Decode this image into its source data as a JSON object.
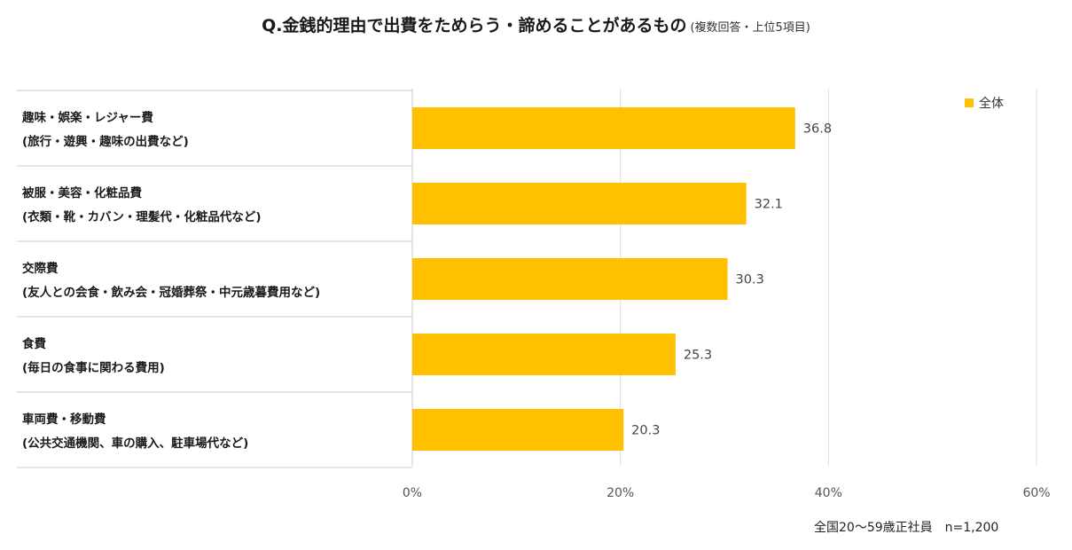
{
  "chart_data": {
    "type": "bar",
    "orientation": "horizontal",
    "title": "Q.金銭的理由で出費をためらう・諦めることがあるもの",
    "subtitle": "(複数回答・上位5項目)",
    "categories": [
      {
        "line1": "趣味・娯楽・レジャー費",
        "line2": "(旅行・遊興・趣味の出費など)"
      },
      {
        "line1": "被服・美容・化粧品費",
        "line2": "(衣類・靴・カバン・理髪代・化粧品代など)"
      },
      {
        "line1": "交際費",
        "line2": "(友人との会食・飲み会・冠婚葬祭・中元歳暮費用など)"
      },
      {
        "line1": "食費",
        "line2": "(毎日の食事に関わる費用)"
      },
      {
        "line1": "車両費・移動費",
        "line2": "(公共交通機関、車の購入、駐車場代など)"
      }
    ],
    "series": [
      {
        "name": "全体",
        "values": [
          36.8,
          32.1,
          30.3,
          25.3,
          20.3
        ]
      }
    ],
    "xlim": [
      0,
      60
    ],
    "xticks": [
      0,
      20,
      40,
      60
    ],
    "xtick_labels": [
      "0%",
      "20%",
      "40%",
      "60%"
    ],
    "grid": true,
    "legend_position": "top-right",
    "bar_color": "#FFC000",
    "footnote": "全国20〜59歳正社員　n=1,200"
  }
}
